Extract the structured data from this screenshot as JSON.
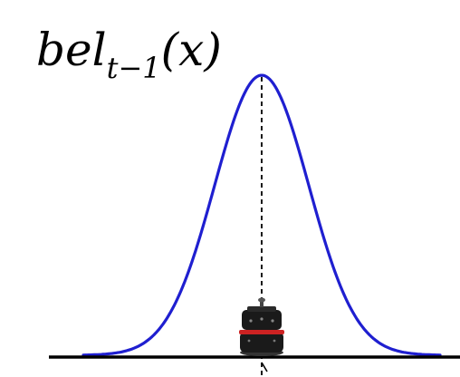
{
  "label": {
    "func": "bel",
    "sub": "t−1",
    "arg": "(x)"
  },
  "curve": {
    "color": "#1f1fd0",
    "shape": "gaussian"
  },
  "colors": {
    "axis": "#000000",
    "guide": "#000000",
    "robot_body": "#1a1a1a",
    "robot_band": "#cc2222"
  },
  "icons": {
    "robot": "robot-icon"
  }
}
